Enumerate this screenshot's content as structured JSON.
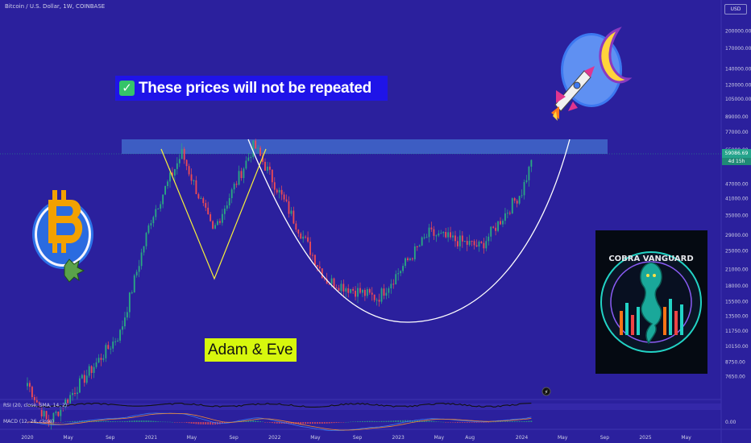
{
  "header": {
    "symbol_title": "Bitcoin / U.S. Dollar, 1W, COINBASE",
    "currency": "USD"
  },
  "annotations": {
    "banner_text": "These prices will not be repeated",
    "pattern_label": "Adam & Eve",
    "cobra_title": "COBRA VANGUARD"
  },
  "price_scale": {
    "current_price": "59086.69",
    "countdown": "4d 15h",
    "labels": [
      "200000.00",
      "170000.00",
      "140000.00",
      "120000.00",
      "105000.00",
      "89000.00",
      "77000.00",
      "65000.00",
      "47000.00",
      "41000.00",
      "35000.00",
      "29000.00",
      "25000.00",
      "21000.00",
      "18000.00",
      "15500.00",
      "13500.00",
      "11750.00",
      "10150.00",
      "8750.00",
      "7650.00",
      "0.00"
    ]
  },
  "indicators": {
    "rsi_label": "RSI (20, close, SMA, 14, 2)",
    "macd_label": "MACD (12, 26, close)"
  },
  "time_axis": [
    "2020",
    "May",
    "Sep",
    "2021",
    "May",
    "Sep",
    "2022",
    "May",
    "Sep",
    "2023",
    "May",
    "Aug",
    "2024",
    "May",
    "Sep",
    "2025",
    "May"
  ],
  "chart_data": {
    "type": "candlestick",
    "title": "Bitcoin / U.S. Dollar, 1W, COINBASE",
    "y_scale": "log",
    "ylim": [
      7000,
      210000
    ],
    "x_range": [
      "2020-01",
      "2025-06"
    ],
    "resistance_zone": [
      59000,
      69000
    ],
    "last_price": 59086.69,
    "key_points": [
      {
        "date": "2020-03",
        "price": 4900
      },
      {
        "date": "2020-10",
        "price": 11500
      },
      {
        "date": "2021-01",
        "price": 34000
      },
      {
        "date": "2021-04",
        "price": 63000
      },
      {
        "date": "2021-07",
        "price": 30000
      },
      {
        "date": "2021-11",
        "price": 68000
      },
      {
        "date": "2022-06",
        "price": 19000
      },
      {
        "date": "2022-11",
        "price": 16000
      },
      {
        "date": "2023-04",
        "price": 29500
      },
      {
        "date": "2023-09",
        "price": 26000
      },
      {
        "date": "2024-01",
        "price": 44000
      },
      {
        "date": "2024-02",
        "price": 59000
      }
    ],
    "colors": {
      "up": "#2aa882",
      "down": "#ee4b55",
      "zone": "#3f64c8",
      "background": "#2b209d"
    }
  }
}
